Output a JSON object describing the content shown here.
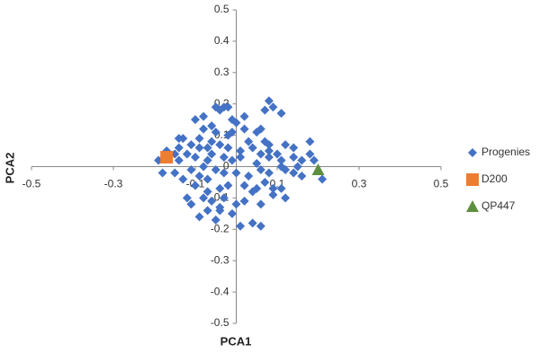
{
  "chart_data": {
    "type": "scatter",
    "x_label": "PCA1",
    "y_label": "PCA2",
    "xlim": [
      -0.5,
      0.5
    ],
    "xticks": [
      -0.5,
      -0.3,
      -0.1,
      0.1,
      0.3,
      0.5
    ],
    "ylim": [
      -0.5,
      0.5
    ],
    "yticks": [
      0.5,
      0.4,
      0.3,
      0.2,
      0.1,
      0,
      -0.1,
      -0.2,
      -0.3,
      -0.4,
      -0.5
    ],
    "legend": "right",
    "series": [
      {
        "name": "Progenies",
        "color": "#4472c4",
        "marker": "diamond",
        "x": [
          0.08,
          0.09,
          0.07,
          0.11,
          -0.03,
          -0.02,
          -0.04,
          -0.01,
          0,
          -0.1,
          -0.06,
          -0.08,
          -0.05,
          0.02,
          0.06,
          0.03,
          -0.02,
          -0.04,
          -0.13,
          -0.14,
          -0.09,
          -0.11,
          -0.07,
          -0.06,
          -0.02,
          0.01,
          0.04,
          0.07,
          0.08,
          0.12,
          0.18,
          0.18,
          0.19,
          0.16,
          0.14,
          0.1,
          0.08,
          0.05,
          0.01,
          -0.01,
          -0.03,
          -0.07,
          -0.1,
          -0.14,
          -0.19,
          -0.18,
          -0.15,
          -0.13,
          -0.11,
          -0.09,
          -0.07,
          -0.05,
          -0.03,
          0,
          0.03,
          0.06,
          0.08,
          0.11,
          0.12,
          0.14,
          0.16,
          0.07,
          0.05,
          0.04,
          0.02,
          -0.02,
          -0.04,
          -0.07,
          -0.1,
          -0.12,
          -0.08,
          -0.06,
          -0.03,
          0,
          0.02,
          0.06,
          0.09,
          0.12,
          -0.07,
          -0.09,
          -0.04,
          -0.01,
          0.01,
          0.04,
          0.06,
          0.09,
          -0.04,
          -0.11,
          -0.05,
          -0.15,
          -0.14,
          -0.09,
          -0.06,
          -0.01,
          0.05,
          0.11,
          0.15,
          0.21,
          0.14,
          0.08,
          -0.12,
          -0.17,
          -0.08,
          0.06,
          0.11,
          -0.08,
          -0.05,
          0.02
        ],
        "values": [
          0.21,
          0.19,
          0.18,
          0.17,
          0.19,
          0.19,
          0.18,
          0.15,
          0.14,
          0.15,
          0.13,
          0.12,
          0.11,
          0.12,
          0.12,
          0.08,
          0.1,
          0.07,
          0.09,
          0.09,
          0.09,
          0.07,
          0.06,
          0.04,
          0.06,
          0.05,
          0.06,
          0.08,
          0.07,
          0.07,
          0.08,
          0.04,
          0.02,
          0.02,
          0.03,
          0.04,
          0.03,
          0.01,
          0.03,
          0.02,
          0.03,
          0.02,
          0.03,
          0.02,
          0.02,
          -0.02,
          -0.02,
          -0.04,
          -0.01,
          -0.03,
          -0.04,
          -0.01,
          -0.02,
          -0.02,
          -0.03,
          -0.01,
          -0.02,
          0,
          -0.01,
          -0.02,
          -0.03,
          -0.05,
          -0.07,
          -0.08,
          -0.06,
          -0.06,
          -0.07,
          -0.08,
          -0.06,
          -0.1,
          -0.1,
          -0.11,
          -0.1,
          -0.12,
          -0.11,
          -0.12,
          -0.09,
          -0.1,
          -0.14,
          -0.16,
          -0.14,
          -0.15,
          -0.19,
          -0.18,
          -0.19,
          -0.07,
          -0.13,
          -0.12,
          -0.17,
          0.04,
          0.06,
          0.06,
          0.08,
          0.11,
          0.11,
          0.02,
          0,
          -0.04,
          0.06,
          0.05,
          0.04,
          0.05,
          0,
          0.04,
          -0.07,
          0.16,
          0.19,
          0.16
        ]
      },
      {
        "name": "D200",
        "color": "#ed7d31",
        "marker": "square",
        "x": [
          -0.17
        ],
        "values": [
          0.03
        ]
      },
      {
        "name": "QP447",
        "color": "#5e8f3e",
        "marker": "triangle",
        "x": [
          0.2
        ],
        "values": [
          -0.01
        ]
      }
    ]
  }
}
